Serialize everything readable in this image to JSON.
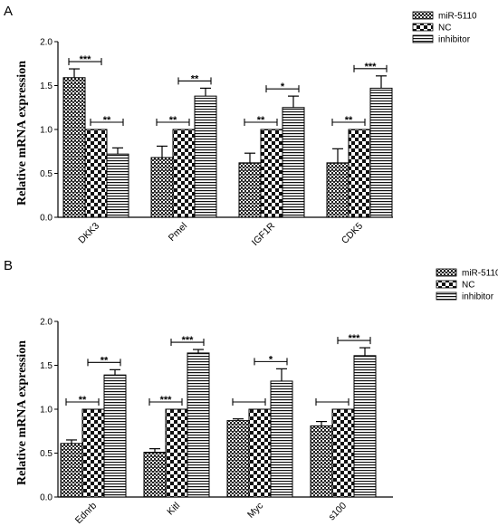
{
  "chart_data": [
    {
      "type": "bar",
      "panel_label": "A",
      "ylabel": "Relative mRNA expression",
      "xlabel": "",
      "ylim": [
        0,
        2.0
      ],
      "yticks": [
        "0.0",
        "0.5",
        "1.0",
        "1.5",
        "2.0"
      ],
      "categories": [
        "DKK3",
        "Pmel",
        "IGF1R",
        "CDK5"
      ],
      "legend_position": "top-right",
      "series": [
        {
          "name": "miR-5110",
          "pattern": "dense-check",
          "values": [
            1.59,
            0.68,
            0.62,
            0.62
          ],
          "errors": [
            0.1,
            0.13,
            0.11,
            0.16
          ]
        },
        {
          "name": "NC",
          "pattern": "checker",
          "values": [
            1.0,
            1.0,
            1.0,
            1.0
          ],
          "errors": [
            0,
            0,
            0,
            0
          ]
        },
        {
          "name": "inhibitor",
          "pattern": "stripes",
          "values": [
            0.72,
            1.38,
            1.25,
            1.47
          ],
          "errors": [
            0.07,
            0.09,
            0.13,
            0.14
          ]
        }
      ],
      "significance": [
        {
          "category": 0,
          "pair": [
            0,
            1
          ],
          "label": "***"
        },
        {
          "category": 0,
          "pair": [
            1,
            2
          ],
          "label": "**"
        },
        {
          "category": 1,
          "pair": [
            0,
            1
          ],
          "label": "**"
        },
        {
          "category": 1,
          "pair": [
            1,
            2
          ],
          "label": "**"
        },
        {
          "category": 2,
          "pair": [
            0,
            1
          ],
          "label": "**"
        },
        {
          "category": 2,
          "pair": [
            1,
            2
          ],
          "label": "*"
        },
        {
          "category": 3,
          "pair": [
            0,
            1
          ],
          "label": "**"
        },
        {
          "category": 3,
          "pair": [
            1,
            2
          ],
          "label": "***"
        }
      ]
    },
    {
      "type": "bar",
      "panel_label": "B",
      "ylabel": "Relative mRNA expression",
      "xlabel": "",
      "ylim": [
        0,
        2.0
      ],
      "yticks": [
        "0.0",
        "0.5",
        "1.0",
        "1.5",
        "2.0"
      ],
      "categories": [
        "Ednrb",
        "Kitl",
        "Myc",
        "s100"
      ],
      "legend_position": "top-right",
      "series": [
        {
          "name": "miR-5110",
          "pattern": "dense-check",
          "values": [
            0.61,
            0.51,
            0.87,
            0.81
          ],
          "errors": [
            0.04,
            0.04,
            0.02,
            0.05
          ]
        },
        {
          "name": "NC",
          "pattern": "checker",
          "values": [
            1.0,
            1.0,
            1.0,
            1.0
          ],
          "errors": [
            0,
            0,
            0,
            0
          ]
        },
        {
          "name": "inhibitor",
          "pattern": "stripes",
          "values": [
            1.39,
            1.64,
            1.32,
            1.61
          ],
          "errors": [
            0.06,
            0.04,
            0.14,
            0.09
          ]
        }
      ],
      "significance": [
        {
          "category": 0,
          "pair": [
            0,
            1
          ],
          "label": "**"
        },
        {
          "category": 0,
          "pair": [
            1,
            2
          ],
          "label": "**"
        },
        {
          "category": 1,
          "pair": [
            0,
            1
          ],
          "label": "***"
        },
        {
          "category": 1,
          "pair": [
            1,
            2
          ],
          "label": "***"
        },
        {
          "category": 2,
          "pair": [
            0,
            1
          ],
          "label": ""
        },
        {
          "category": 2,
          "pair": [
            1,
            2
          ],
          "label": "*"
        },
        {
          "category": 3,
          "pair": [
            0,
            1
          ],
          "label": ""
        },
        {
          "category": 3,
          "pair": [
            1,
            2
          ],
          "label": "***"
        }
      ]
    }
  ]
}
